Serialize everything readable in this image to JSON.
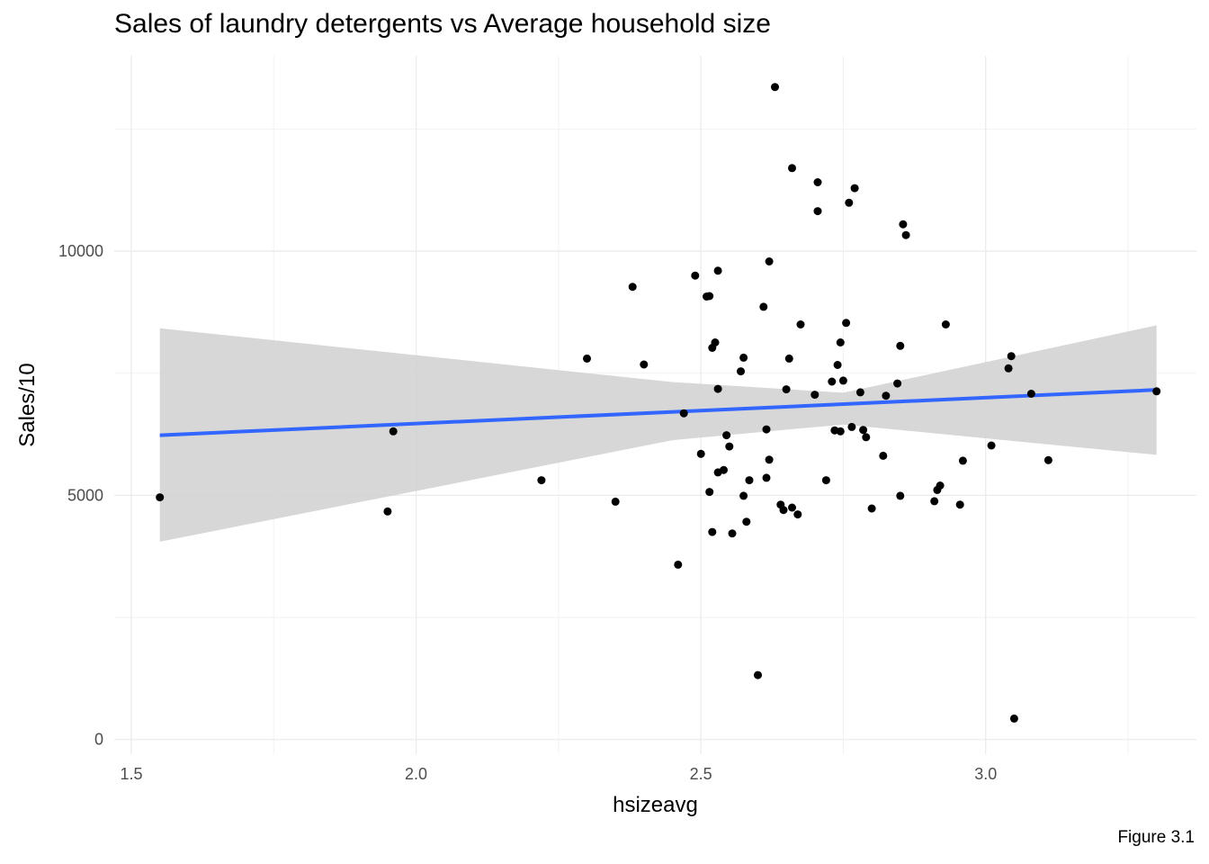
{
  "caption": "Figure 3.1",
  "chart_data": {
    "type": "scatter",
    "title": "Sales of laundry detergents vs Average household size",
    "xlabel": "hsizeavg",
    "ylabel": "Sales/10",
    "xlim": [
      1.47,
      3.37
    ],
    "ylim": [
      -300,
      14000
    ],
    "x_ticks": [
      1.5,
      2.0,
      2.5,
      3.0
    ],
    "x_tick_labels": [
      "1.5",
      "2.0",
      "2.5",
      "3.0"
    ],
    "y_ticks": [
      0,
      5000,
      10000
    ],
    "y_tick_labels": [
      "0",
      "5000",
      "10000"
    ],
    "x_minor_ticks": [
      1.75,
      2.25,
      2.75,
      3.25
    ],
    "y_minor_ticks": [
      2500,
      7500,
      12500
    ],
    "grid": true,
    "colors": {
      "points": "#000000",
      "line": "#3366ff",
      "band": "#d3d3d3",
      "grid": "#ebebeb"
    },
    "points": [
      [
        1.55,
        4960
      ],
      [
        1.95,
        4670
      ],
      [
        1.96,
        6310
      ],
      [
        2.22,
        5310
      ],
      [
        2.3,
        7800
      ],
      [
        2.35,
        4870
      ],
      [
        2.38,
        9270
      ],
      [
        2.4,
        7680
      ],
      [
        2.46,
        3580
      ],
      [
        2.47,
        6680
      ],
      [
        2.49,
        9500
      ],
      [
        2.5,
        5850
      ],
      [
        2.51,
        9070
      ],
      [
        2.515,
        9080
      ],
      [
        2.515,
        5070
      ],
      [
        2.52,
        8020
      ],
      [
        2.52,
        4250
      ],
      [
        2.525,
        8130
      ],
      [
        2.53,
        9600
      ],
      [
        2.53,
        7180
      ],
      [
        2.53,
        5470
      ],
      [
        2.54,
        5520
      ],
      [
        2.545,
        6230
      ],
      [
        2.55,
        6000
      ],
      [
        2.555,
        4220
      ],
      [
        2.57,
        7540
      ],
      [
        2.575,
        7820
      ],
      [
        2.575,
        4990
      ],
      [
        2.58,
        4460
      ],
      [
        2.585,
        5310
      ],
      [
        2.6,
        1320
      ],
      [
        2.61,
        8860
      ],
      [
        2.615,
        6350
      ],
      [
        2.615,
        5360
      ],
      [
        2.62,
        9790
      ],
      [
        2.62,
        5730
      ],
      [
        2.63,
        13360
      ],
      [
        2.64,
        4810
      ],
      [
        2.645,
        4700
      ],
      [
        2.65,
        7170
      ],
      [
        2.655,
        7800
      ],
      [
        2.66,
        4750
      ],
      [
        2.66,
        11700
      ],
      [
        2.67,
        4610
      ],
      [
        2.675,
        8500
      ],
      [
        2.7,
        7060
      ],
      [
        2.705,
        10820
      ],
      [
        2.705,
        11410
      ],
      [
        2.72,
        5310
      ],
      [
        2.73,
        7330
      ],
      [
        2.735,
        6330
      ],
      [
        2.74,
        7670
      ],
      [
        2.745,
        6310
      ],
      [
        2.745,
        8130
      ],
      [
        2.75,
        7350
      ],
      [
        2.755,
        8530
      ],
      [
        2.76,
        10990
      ],
      [
        2.765,
        6400
      ],
      [
        2.77,
        11290
      ],
      [
        2.78,
        7110
      ],
      [
        2.785,
        6340
      ],
      [
        2.79,
        6190
      ],
      [
        2.8,
        4730
      ],
      [
        2.82,
        5810
      ],
      [
        2.825,
        7040
      ],
      [
        2.845,
        7290
      ],
      [
        2.85,
        4990
      ],
      [
        2.85,
        8060
      ],
      [
        2.855,
        10550
      ],
      [
        2.86,
        10330
      ],
      [
        2.91,
        4880
      ],
      [
        2.915,
        5110
      ],
      [
        2.92,
        5200
      ],
      [
        2.93,
        8500
      ],
      [
        2.955,
        4810
      ],
      [
        2.96,
        5710
      ],
      [
        3.01,
        6020
      ],
      [
        3.04,
        7600
      ],
      [
        3.045,
        7850
      ],
      [
        3.05,
        430
      ],
      [
        3.08,
        7080
      ],
      [
        3.11,
        5720
      ],
      [
        3.3,
        7130
      ]
    ],
    "smooth": {
      "method": "lm",
      "line": [
        [
          1.55,
          6230
        ],
        [
          3.3,
          7160
        ]
      ],
      "band_upper": [
        [
          1.55,
          8420
        ],
        [
          2.45,
          7320
        ],
        [
          2.75,
          7100
        ],
        [
          3.3,
          8480
        ]
      ],
      "band_lower": [
        [
          1.55,
          4050
        ],
        [
          2.45,
          6130
        ],
        [
          2.75,
          6450
        ],
        [
          3.3,
          5830
        ]
      ]
    }
  }
}
